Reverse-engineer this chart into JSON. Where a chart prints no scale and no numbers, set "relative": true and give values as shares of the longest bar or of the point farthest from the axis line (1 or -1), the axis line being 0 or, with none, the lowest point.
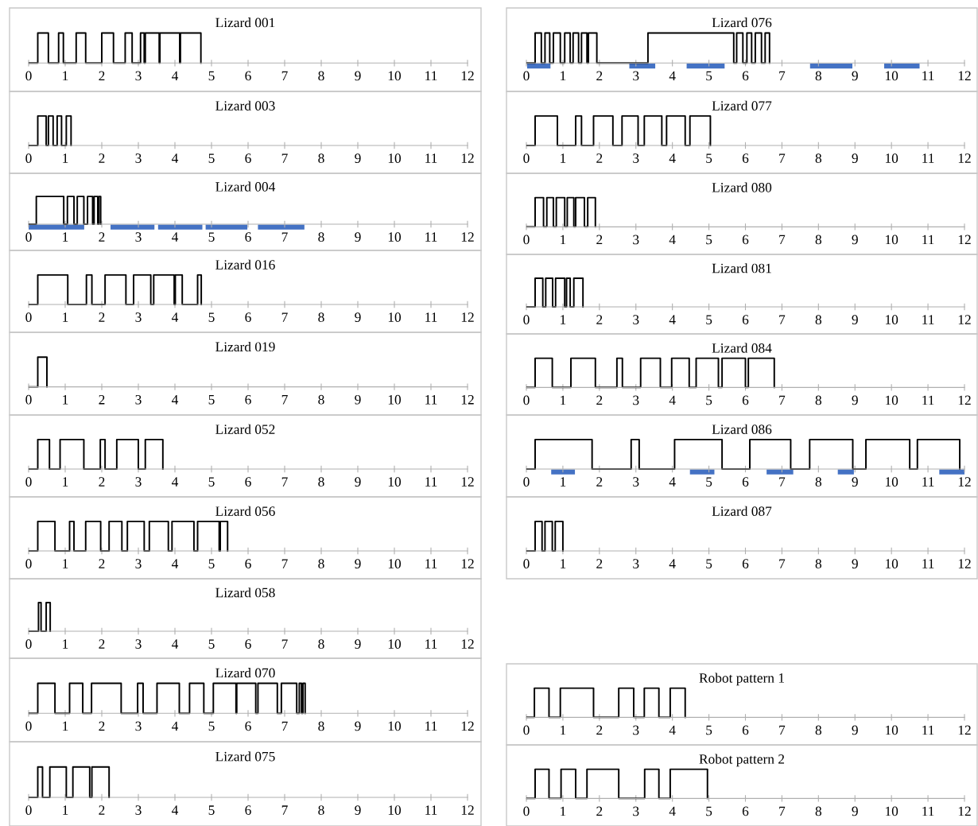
{
  "chart_data": [
    {
      "type": "step",
      "title": "Lizard 001",
      "relative": true,
      "color": "#000000",
      "xlim": [
        0,
        12
      ],
      "xticks": [
        0,
        1,
        2,
        3,
        4,
        5,
        6,
        7,
        8,
        9,
        10,
        11,
        12
      ],
      "x": [
        0,
        0.25,
        0.54,
        0.82,
        0.95,
        1.3,
        1.56,
        2.0,
        2.32,
        2.64,
        2.83,
        3.06,
        3.16,
        3.19,
        3.57,
        3.59,
        4.13,
        4.15,
        4.71
      ],
      "values": [
        0,
        1,
        0,
        1,
        0,
        1,
        0,
        1,
        0,
        1,
        0,
        1,
        0,
        1,
        0,
        1,
        0,
        1,
        0
      ]
    },
    {
      "type": "step",
      "title": "Lizard 076",
      "relative": true,
      "color": "#000000",
      "xlim": [
        0,
        12
      ],
      "xticks": [
        0,
        1,
        2,
        3,
        4,
        5,
        6,
        7,
        8,
        9,
        10,
        11,
        12
      ],
      "x": [
        0,
        0.24,
        0.41,
        0.51,
        0.64,
        0.74,
        0.93,
        1.05,
        1.2,
        1.28,
        1.43,
        1.51,
        1.66,
        1.7,
        1.93,
        3.33,
        5.68,
        5.76,
        5.93,
        6.04,
        6.17,
        6.27,
        6.44,
        6.54,
        6.66
      ],
      "values": [
        0,
        1,
        0,
        1,
        0,
        1,
        0,
        1,
        0,
        1,
        0,
        1,
        0,
        1,
        0,
        1,
        0,
        1,
        0,
        1,
        0,
        1,
        0,
        1,
        0
      ],
      "series": [
        {
          "type": "line",
          "color": "#4472c4",
          "x": [
            0.02,
            0.66,
            1.7,
            2.82,
            3.53,
            4.0,
            4.39,
            5.43,
            6.6,
            7.77,
            8.93,
            9.4,
            9.8,
            10.77
          ],
          "values": [
            -0.1,
            -0.1,
            null,
            -0.1,
            -0.1,
            null,
            -0.1,
            -0.1,
            null,
            -0.1,
            -0.1,
            null,
            -0.1,
            -0.1
          ]
        }
      ]
    },
    {
      "type": "step",
      "title": "Lizard 003",
      "relative": true,
      "color": "#000000",
      "xlim": [
        0,
        12
      ],
      "xticks": [
        0,
        1,
        2,
        3,
        4,
        5,
        6,
        7,
        8,
        9,
        10,
        11,
        12
      ],
      "x": [
        0,
        0.25,
        0.48,
        0.54,
        0.67,
        0.78,
        0.9,
        1.03,
        1.16
      ],
      "values": [
        0,
        1,
        0,
        1,
        0,
        1,
        0,
        1,
        0
      ]
    },
    {
      "type": "step",
      "title": "Lizard 077",
      "relative": true,
      "color": "#000000",
      "xlim": [
        0,
        12
      ],
      "xticks": [
        0,
        1,
        2,
        3,
        4,
        5,
        6,
        7,
        8,
        9,
        10,
        11,
        12
      ],
      "x": [
        0,
        0.24,
        0.85,
        1.35,
        1.51,
        1.84,
        2.37,
        2.62,
        3.06,
        3.23,
        3.71,
        3.84,
        4.35,
        4.48,
        5.04
      ],
      "values": [
        0,
        1,
        0,
        1,
        0,
        1,
        0,
        1,
        0,
        1,
        0,
        1,
        0,
        1,
        0
      ]
    },
    {
      "type": "step",
      "title": "Lizard 004",
      "relative": true,
      "color": "#000000",
      "xlim": [
        0,
        12
      ],
      "xticks": [
        0,
        1,
        2,
        3,
        4,
        5,
        6,
        7,
        8,
        9,
        10,
        11,
        12
      ],
      "x": [
        0,
        0.21,
        0.96,
        1.06,
        1.24,
        1.33,
        1.51,
        1.61,
        1.75,
        1.79,
        1.89,
        1.92,
        1.97
      ],
      "values": [
        0,
        1,
        0,
        1,
        0,
        1,
        0,
        1,
        0,
        1,
        0,
        1,
        0
      ],
      "series": [
        {
          "type": "line",
          "color": "#4472c4",
          "x": [
            0,
            1.52,
            1.9,
            2.24,
            3.44,
            3.5,
            3.54,
            4.75,
            4.8,
            4.84,
            5.98,
            6.1,
            6.27,
            7.54
          ],
          "values": [
            -0.1,
            -0.1,
            null,
            -0.1,
            -0.1,
            null,
            -0.1,
            -0.1,
            null,
            -0.1,
            -0.1,
            null,
            -0.1,
            -0.1
          ]
        }
      ]
    },
    {
      "type": "step",
      "title": "Lizard 080",
      "relative": true,
      "color": "#000000",
      "xlim": [
        0,
        12
      ],
      "xticks": [
        0,
        1,
        2,
        3,
        4,
        5,
        6,
        7,
        8,
        9,
        10,
        11,
        12
      ],
      "x": [
        0,
        0.24,
        0.47,
        0.56,
        0.74,
        0.82,
        1.05,
        1.12,
        1.3,
        1.35,
        1.59,
        1.68,
        1.89
      ],
      "values": [
        0,
        1,
        0,
        1,
        0,
        1,
        0,
        1,
        0,
        1,
        0,
        1,
        0
      ]
    },
    {
      "type": "step",
      "title": "Lizard 016",
      "relative": true,
      "color": "#000000",
      "xlim": [
        0,
        12
      ],
      "xticks": [
        0,
        1,
        2,
        3,
        4,
        5,
        6,
        7,
        8,
        9,
        10,
        11,
        12
      ],
      "x": [
        0,
        0.25,
        1.07,
        1.58,
        1.73,
        2.09,
        2.66,
        2.87,
        3.34,
        3.42,
        3.98,
        4.01,
        4.2,
        4.62,
        4.72
      ],
      "values": [
        0,
        1,
        0,
        1,
        0,
        1,
        0,
        1,
        0,
        1,
        0,
        1,
        0,
        1,
        0
      ]
    },
    {
      "type": "step",
      "title": "Lizard 081",
      "relative": true,
      "color": "#000000",
      "xlim": [
        0,
        12
      ],
      "xticks": [
        0,
        1,
        2,
        3,
        4,
        5,
        6,
        7,
        8,
        9,
        10,
        11,
        12
      ],
      "x": [
        0,
        0.24,
        0.45,
        0.53,
        0.72,
        0.8,
        1.05,
        1.1,
        1.2,
        1.3,
        1.55
      ],
      "values": [
        0,
        1,
        0,
        1,
        0,
        1,
        0,
        1,
        0,
        1,
        0
      ]
    },
    {
      "type": "step",
      "title": "Lizard 019",
      "relative": true,
      "color": "#000000",
      "xlim": [
        0,
        12
      ],
      "xticks": [
        0,
        1,
        2,
        3,
        4,
        5,
        6,
        7,
        8,
        9,
        10,
        11,
        12
      ],
      "x": [
        0,
        0.25,
        0.5
      ],
      "values": [
        0,
        1,
        0
      ]
    },
    {
      "type": "step",
      "title": "Lizard 084",
      "relative": true,
      "color": "#000000",
      "xlim": [
        0,
        12
      ],
      "xticks": [
        0,
        1,
        2,
        3,
        4,
        5,
        6,
        7,
        8,
        9,
        10,
        11,
        12
      ],
      "x": [
        0,
        0.24,
        0.71,
        1.22,
        1.89,
        2.48,
        2.63,
        3.13,
        3.67,
        3.98,
        4.46,
        4.65,
        5.26,
        5.36,
        6.0,
        6.08,
        6.79
      ],
      "values": [
        0,
        1,
        0,
        1,
        0,
        1,
        0,
        1,
        0,
        1,
        0,
        1,
        0,
        1,
        0,
        1,
        0
      ]
    },
    {
      "type": "step",
      "title": "Lizard 052",
      "relative": true,
      "color": "#000000",
      "xlim": [
        0,
        12
      ],
      "xticks": [
        0,
        1,
        2,
        3,
        4,
        5,
        6,
        7,
        8,
        9,
        10,
        11,
        12
      ],
      "x": [
        0,
        0.25,
        0.57,
        0.86,
        1.51,
        1.96,
        2.09,
        2.41,
        3.0,
        3.19,
        3.67
      ],
      "values": [
        0,
        1,
        0,
        1,
        0,
        1,
        0,
        1,
        0,
        1,
        0
      ]
    },
    {
      "type": "step",
      "title": "Lizard 086",
      "relative": true,
      "color": "#000000",
      "xlim": [
        0,
        12
      ],
      "xticks": [
        0,
        1,
        2,
        3,
        4,
        5,
        6,
        7,
        8,
        9,
        10,
        11,
        12
      ],
      "x": [
        0,
        0.24,
        1.8,
        2.87,
        3.09,
        4.06,
        5.36,
        6.12,
        7.24,
        7.76,
        8.94,
        9.3,
        10.5,
        10.71,
        11.87
      ],
      "values": [
        0,
        1,
        0,
        1,
        0,
        1,
        0,
        1,
        0,
        1,
        0,
        1,
        0,
        1,
        0
      ],
      "series": [
        {
          "type": "line",
          "color": "#4472c4",
          "x": [
            0.68,
            1.33,
            3.0,
            4.48,
            5.15,
            6.0,
            6.58,
            7.31,
            8.0,
            8.53,
            8.97,
            10.0,
            11.31,
            12
          ],
          "values": [
            -0.1,
            -0.1,
            null,
            -0.1,
            -0.1,
            null,
            -0.1,
            -0.1,
            null,
            -0.1,
            -0.1,
            null,
            -0.1,
            -0.1
          ]
        }
      ]
    },
    {
      "type": "step",
      "title": "Lizard 056",
      "relative": true,
      "color": "#000000",
      "xlim": [
        0,
        12
      ],
      "xticks": [
        0,
        1,
        2,
        3,
        4,
        5,
        6,
        7,
        8,
        9,
        10,
        11,
        12
      ],
      "x": [
        0,
        0.25,
        0.72,
        1.12,
        1.24,
        1.56,
        1.97,
        2.2,
        2.55,
        2.7,
        3.16,
        3.3,
        3.82,
        3.92,
        4.52,
        4.62,
        5.21,
        5.24,
        5.44
      ],
      "values": [
        0,
        1,
        0,
        1,
        0,
        1,
        0,
        1,
        0,
        1,
        0,
        1,
        0,
        1,
        0,
        1,
        0,
        1,
        0
      ]
    },
    {
      "type": "step",
      "title": "Lizard 087",
      "relative": true,
      "color": "#000000",
      "xlim": [
        0,
        12
      ],
      "xticks": [
        0,
        1,
        2,
        3,
        4,
        5,
        6,
        7,
        8,
        9,
        10,
        11,
        12
      ],
      "x": [
        0,
        0.24,
        0.43,
        0.51,
        0.71,
        0.79,
        1.0
      ],
      "values": [
        0,
        1,
        0,
        1,
        0,
        1,
        0
      ]
    },
    {
      "type": "step",
      "title": "Lizard 058",
      "relative": true,
      "color": "#000000",
      "xlim": [
        0,
        12
      ],
      "xticks": [
        0,
        1,
        2,
        3,
        4,
        5,
        6,
        7,
        8,
        9,
        10,
        11,
        12
      ],
      "x": [
        0,
        0.27,
        0.34,
        0.48,
        0.59
      ],
      "values": [
        0,
        1,
        0,
        1,
        0
      ]
    },
    {
      "type": "step",
      "title": "Lizard 070",
      "relative": true,
      "color": "#000000",
      "xlim": [
        0,
        12
      ],
      "xticks": [
        0,
        1,
        2,
        3,
        4,
        5,
        6,
        7,
        8,
        9,
        10,
        11,
        12
      ],
      "x": [
        0,
        0.25,
        0.72,
        1.12,
        1.48,
        1.72,
        2.53,
        2.98,
        3.13,
        3.51,
        4.12,
        4.4,
        4.79,
        5.05,
        5.67,
        5.69,
        6.21,
        6.27,
        6.8,
        6.91,
        7.33,
        7.4,
        7.46,
        7.5,
        7.56
      ],
      "values": [
        0,
        1,
        0,
        1,
        0,
        1,
        0,
        1,
        0,
        1,
        0,
        1,
        0,
        1,
        0,
        1,
        0,
        1,
        0,
        1,
        0,
        1,
        0,
        1,
        0
      ]
    },
    {
      "type": "step",
      "title": "Robot pattern 1",
      "relative": true,
      "color": "#000000",
      "xlim": [
        0,
        12
      ],
      "xticks": [
        0,
        1,
        2,
        3,
        4,
        5,
        6,
        7,
        8,
        9,
        10,
        11,
        12
      ],
      "x": [
        0,
        0.22,
        0.62,
        0.93,
        1.84,
        2.53,
        2.94,
        3.23,
        3.63,
        3.94,
        4.35
      ],
      "values": [
        0,
        1,
        0,
        1,
        0,
        1,
        0,
        1,
        0,
        1,
        0
      ]
    },
    {
      "type": "step",
      "title": "Lizard 075",
      "relative": true,
      "color": "#000000",
      "xlim": [
        0,
        12
      ],
      "xticks": [
        0,
        1,
        2,
        3,
        4,
        5,
        6,
        7,
        8,
        9,
        10,
        11,
        12
      ],
      "x": [
        0,
        0.25,
        0.38,
        0.58,
        1.03,
        1.21,
        1.67,
        1.73,
        2.2
      ],
      "values": [
        0,
        1,
        0,
        1,
        0,
        1,
        0,
        1,
        0
      ]
    },
    {
      "type": "step",
      "title": "Robot pattern 2",
      "relative": true,
      "color": "#000000",
      "xlim": [
        0,
        12
      ],
      "xticks": [
        0,
        1,
        2,
        3,
        4,
        5,
        6,
        7,
        8,
        9,
        10,
        11,
        12
      ],
      "x": [
        0,
        0.24,
        0.62,
        0.95,
        1.35,
        1.66,
        2.53,
        3.24,
        3.63,
        3.94,
        4.96
      ],
      "values": [
        0,
        1,
        0,
        1,
        0,
        1,
        0,
        1,
        0,
        1,
        0
      ]
    }
  ]
}
